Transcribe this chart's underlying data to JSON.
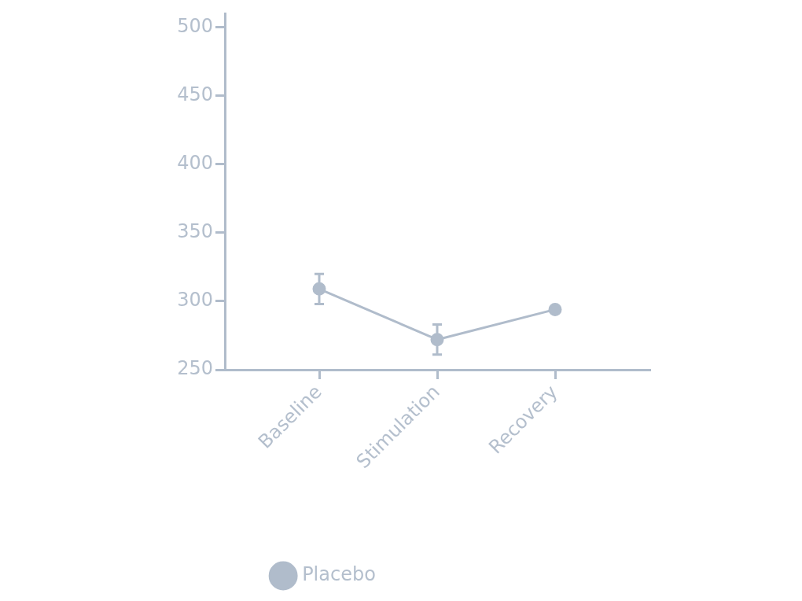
{
  "chart_data": {
    "type": "line",
    "categories": [
      "Baseline",
      "Stimulation",
      "Recovery"
    ],
    "series": [
      {
        "name": "Placebo",
        "color": "#b0bccb",
        "values": [
          309,
          272,
          294
        ],
        "errors": [
          11,
          11,
          null
        ]
      }
    ],
    "ylim": [
      250,
      510
    ],
    "yticks": [
      250,
      300,
      350,
      400,
      450,
      500
    ],
    "grid": false,
    "legend": "bottom",
    "marker": "circle",
    "line_style": "solid"
  }
}
